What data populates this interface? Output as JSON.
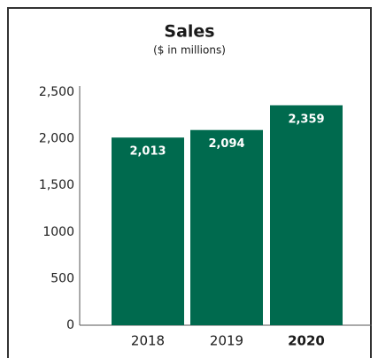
{
  "chart_data": {
    "type": "bar",
    "title": "Sales",
    "subtitle": "($ in millions)",
    "categories": [
      "2018",
      "2019",
      "2020"
    ],
    "values": [
      2013,
      2094,
      2359
    ],
    "value_labels": [
      "2,013",
      "2,094",
      "2,359"
    ],
    "color": "#006a4e",
    "ylim": [
      0,
      2500
    ],
    "yticks": [
      0,
      500,
      1000,
      {
        "value": 1500,
        "label": "1,500"
      },
      {
        "value": 2000,
        "label": "2,000"
      },
      {
        "value": 2500,
        "label": "2,500"
      }
    ],
    "grid": false
  }
}
